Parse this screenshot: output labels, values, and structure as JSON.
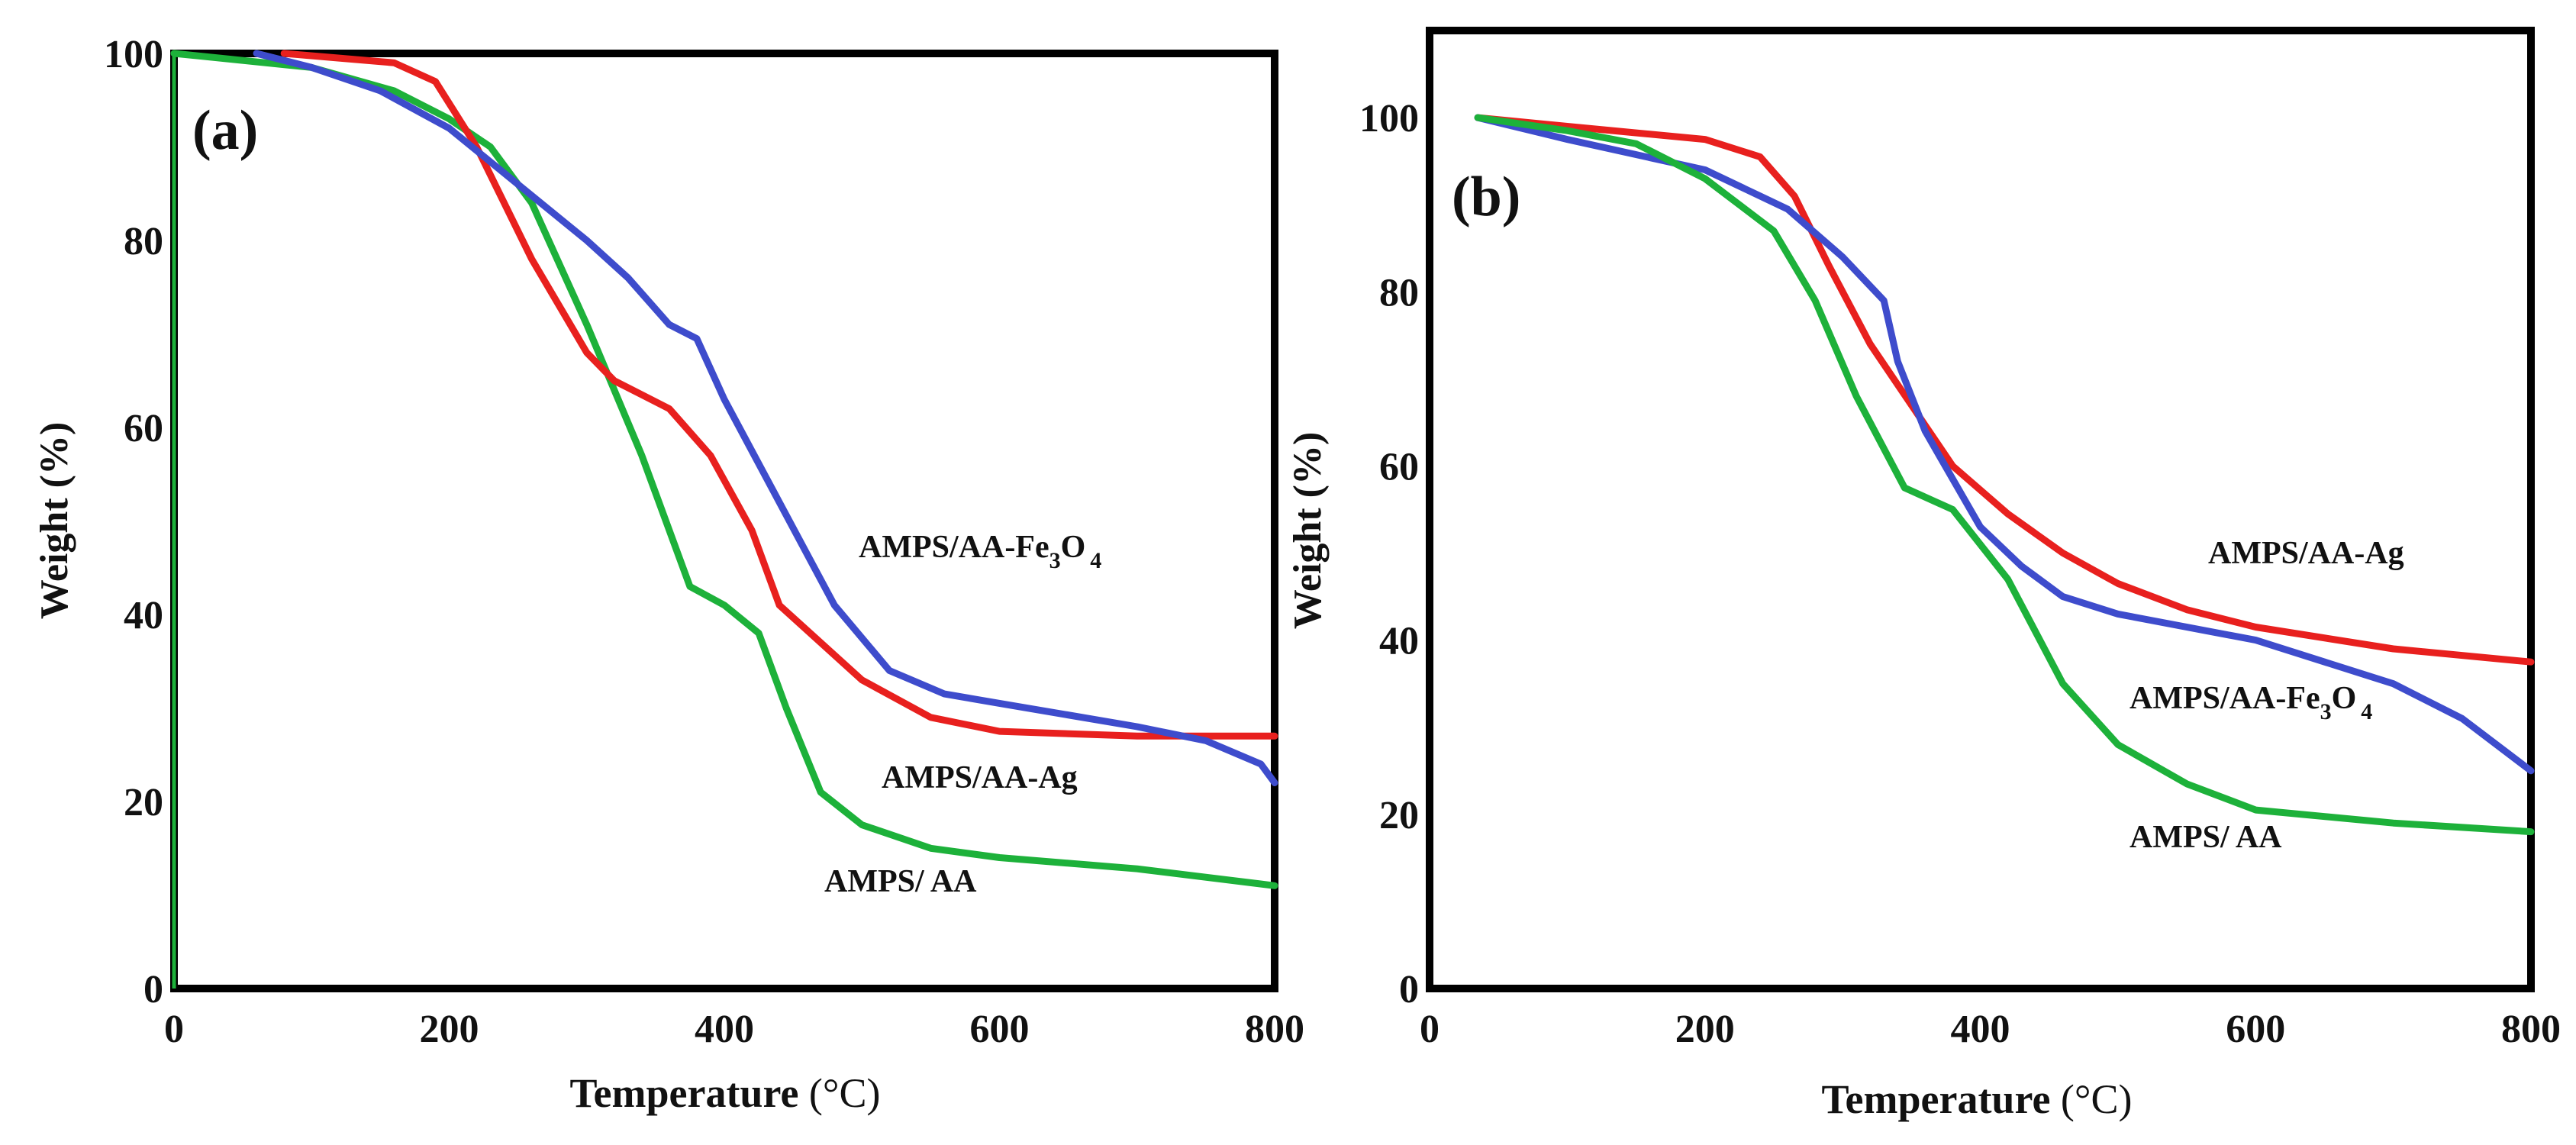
{
  "chart_data": [
    {
      "type": "line",
      "panel_label": "(a)",
      "xlabel": "Temperature",
      "xunit": "°C",
      "ylabel": "Weight (%)",
      "xlim": [
        0,
        800
      ],
      "ylim": [
        0,
        100
      ],
      "xticks": [
        "0",
        "200",
        "400",
        "600",
        "800"
      ],
      "yticks": [
        "0",
        "20",
        "40",
        "60",
        "80",
        "100"
      ],
      "series": [
        {
          "name": "AMPS/ AA",
          "label_text": "AMPS/ AA",
          "color": "#1db13a",
          "x": [
            0,
            100,
            160,
            200,
            230,
            260,
            300,
            340,
            375,
            400,
            425,
            445,
            470,
            500,
            550,
            600,
            700,
            800
          ],
          "y": [
            100,
            98.5,
            96,
            93,
            90,
            84,
            71,
            57,
            43,
            41,
            38,
            30,
            21,
            17.5,
            15,
            14,
            12.8,
            11
          ]
        },
        {
          "name": "AMPS/AA-Ag",
          "label_text": "AMPS/AA-Ag",
          "color": "#e8201e",
          "x": [
            80,
            120,
            160,
            190,
            220,
            260,
            300,
            320,
            340,
            360,
            390,
            420,
            440,
            470,
            500,
            550,
            600,
            700,
            800
          ],
          "y": [
            100,
            99.5,
            99,
            97,
            90,
            78,
            68,
            65,
            63.5,
            62,
            57,
            49,
            41,
            37,
            33,
            29,
            27.5,
            27,
            27
          ]
        },
        {
          "name": "AMPS/AA-Fe3O4",
          "label_prefix": "AMPS/AA-Fe",
          "label_sub1": "3",
          "label_mid": "O",
          "label_sub2": "4",
          "color": "#3e4ccc",
          "x": [
            60,
            100,
            150,
            200,
            250,
            300,
            330,
            360,
            380,
            400,
            440,
            480,
            520,
            560,
            600,
            700,
            750,
            790,
            800
          ],
          "y": [
            100,
            98.5,
            96,
            92,
            86,
            80,
            76,
            71,
            69.5,
            63,
            52,
            41,
            34,
            31.5,
            30.5,
            28,
            26.5,
            24,
            22
          ]
        }
      ]
    },
    {
      "type": "line",
      "panel_label": "(b)",
      "xlabel": "Temperature",
      "xunit": "°C",
      "ylabel": "Weight (%)",
      "xlim": [
        0,
        800
      ],
      "ylim": [
        0,
        110
      ],
      "xticks": [
        "0",
        "200",
        "400",
        "600",
        "800"
      ],
      "yticks": [
        "0",
        "20",
        "40",
        "60",
        "80",
        "100"
      ],
      "series": [
        {
          "name": "AMPS/AA-Ag",
          "label_text": "AMPS/AA-Ag",
          "color": "#e8201e",
          "x": [
            35,
            100,
            200,
            240,
            265,
            290,
            320,
            350,
            380,
            420,
            460,
            500,
            550,
            600,
            700,
            800
          ],
          "y": [
            100,
            99,
            97.5,
            95.5,
            91,
            83,
            74,
            67,
            60,
            54.5,
            50,
            46.5,
            43.5,
            41.5,
            39,
            37.5
          ]
        },
        {
          "name": "AMPS/AA-Fe3O4",
          "label_prefix": "AMPS/AA-Fe",
          "label_sub1": "3",
          "label_mid": "O",
          "label_sub2": "4",
          "color": "#3e4ccc",
          "x": [
            35,
            100,
            200,
            260,
            300,
            330,
            340,
            360,
            400,
            430,
            460,
            500,
            600,
            700,
            750,
            800
          ],
          "y": [
            100,
            97.5,
            94,
            89.5,
            84,
            79,
            72,
            64,
            53,
            48.5,
            45,
            43,
            40,
            35,
            31,
            25
          ]
        },
        {
          "name": "AMPS/ AA",
          "label_text": "AMPS/ AA",
          "color": "#1db13a",
          "x": [
            35,
            100,
            150,
            200,
            250,
            280,
            310,
            330,
            345,
            380,
            420,
            460,
            500,
            550,
            600,
            700,
            800
          ],
          "y": [
            100,
            98.5,
            97,
            93,
            87,
            79,
            68,
            62,
            57.5,
            55,
            47,
            35,
            28,
            23.5,
            20.5,
            19,
            18
          ]
        }
      ]
    }
  ]
}
